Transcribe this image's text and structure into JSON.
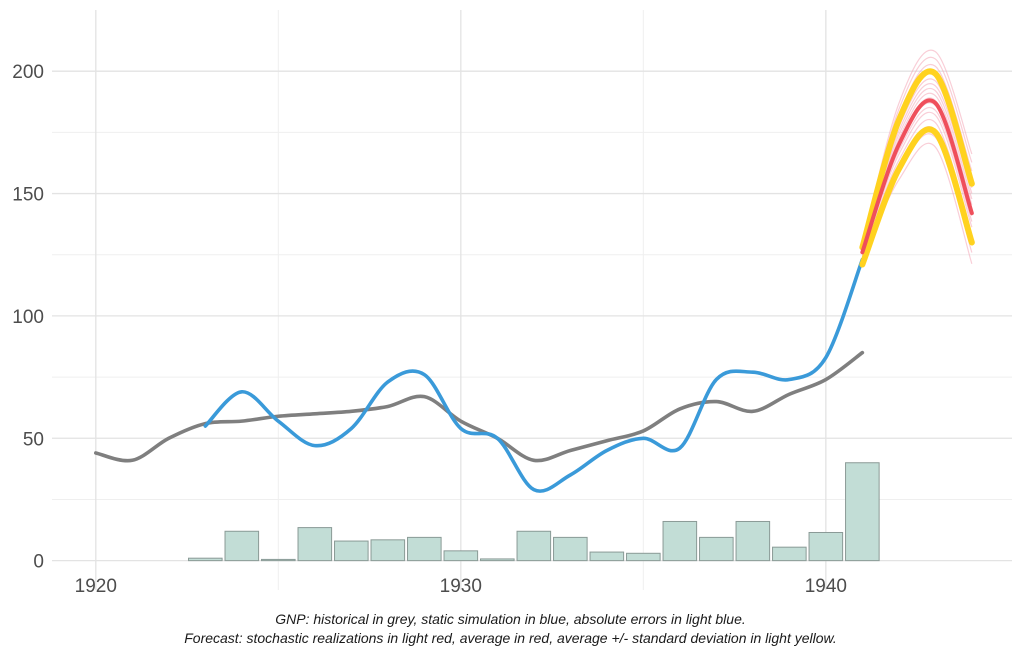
{
  "chart_data": {
    "type": "line",
    "xlim": [
      1918.8,
      1945.1
    ],
    "ylim": [
      -12,
      225
    ],
    "x_ticks": [
      1920,
      1930,
      1940
    ],
    "y_ticks": [
      0,
      50,
      100,
      150,
      200
    ],
    "grid": true,
    "colors": {
      "historical": "#7f7f7f",
      "simulation": "#3a9ad9",
      "errors_fill": "#c2ddd6",
      "errors_stroke": "#8a9a96",
      "realizations": "#f4a6b6",
      "average": "#ef4f5b",
      "band": "#ffd21f"
    },
    "series": [
      {
        "key": "historical",
        "x": [
          1920,
          1921,
          1922,
          1923,
          1924,
          1925,
          1926,
          1927,
          1928,
          1929,
          1930,
          1931,
          1932,
          1933,
          1934,
          1935,
          1936,
          1937,
          1938,
          1939,
          1940,
          1941
        ],
        "values": [
          44,
          41,
          50,
          56,
          57,
          59,
          60,
          61,
          63,
          67,
          57,
          50,
          41,
          45,
          49,
          53,
          62,
          65,
          61,
          68,
          74,
          85
        ]
      },
      {
        "key": "simulation",
        "x": [
          1923,
          1924,
          1925,
          1926,
          1927,
          1928,
          1929,
          1930,
          1931,
          1932,
          1933,
          1934,
          1935,
          1936,
          1937,
          1938,
          1939,
          1940,
          1941
        ],
        "values": [
          55,
          69,
          57,
          47,
          54,
          73,
          76,
          54,
          50,
          29,
          35,
          45,
          50,
          46,
          74,
          77,
          74,
          83,
          123
        ]
      },
      {
        "key": "errors",
        "type": "bar",
        "x": [
          1923,
          1924,
          1925,
          1926,
          1927,
          1928,
          1929,
          1930,
          1931,
          1932,
          1933,
          1934,
          1935,
          1936,
          1937,
          1938,
          1939,
          1940,
          1941
        ],
        "values": [
          1,
          12,
          0.5,
          13.5,
          8,
          8.5,
          9.5,
          4,
          0.7,
          12,
          9.5,
          3.5,
          3,
          16,
          9.5,
          16,
          5.5,
          11.5,
          40
        ]
      },
      {
        "key": "average",
        "x": [
          1941,
          1942,
          1943,
          1944
        ],
        "values": [
          126,
          170,
          187,
          142
        ]
      },
      {
        "key": "band_upper",
        "x": [
          1941,
          1942,
          1943,
          1944
        ],
        "values": [
          128,
          180,
          199,
          154
        ]
      },
      {
        "key": "band_lower",
        "x": [
          1941,
          1942,
          1943,
          1944
        ],
        "values": [
          121,
          160,
          175,
          130
        ]
      }
    ],
    "realization_offsets": [
      -18,
      -14,
      -11,
      -8,
      -5,
      -3,
      -1,
      1,
      3,
      5,
      7,
      9,
      12,
      15,
      18,
      21
    ]
  },
  "caption": {
    "line1": "GNP: historical in grey, static simulation in blue, absolute errors in light blue.",
    "line2": "Forecast: stochastic realizations in light red, average in red, average +/- standard deviation in light yellow."
  }
}
